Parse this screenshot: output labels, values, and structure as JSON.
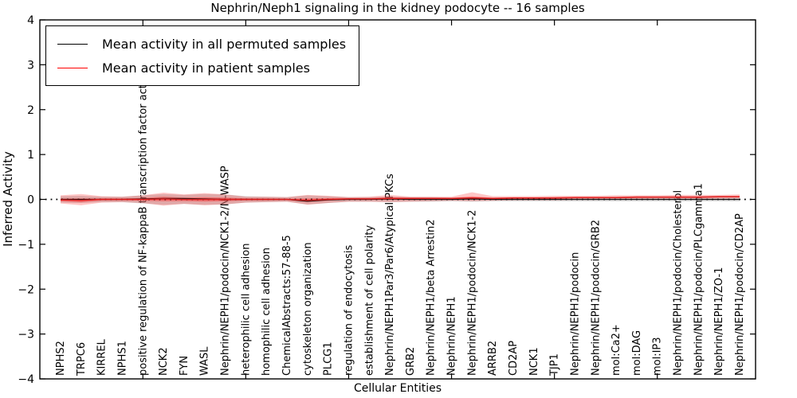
{
  "chart_data": {
    "type": "line",
    "title": "Nephrin/Neph1 signaling in the kidney podocyte -- 16 samples",
    "xlabel": "Cellular Entities",
    "ylabel": "Inferred Activity",
    "ylim": [
      -4,
      4
    ],
    "yticks": {
      "values": [
        4,
        3,
        2,
        1,
        0,
        -1,
        -2,
        -3,
        -4
      ],
      "labels": [
        "4",
        "3",
        "2",
        "1",
        "0",
        "−1",
        "−2",
        "−3",
        "−4"
      ]
    },
    "x_major_tick_indices": [
      4,
      9,
      14,
      19,
      24,
      29
    ],
    "grid": false,
    "legend_position": "upper-left",
    "legend": [
      {
        "label": "Mean activity in all permuted samples",
        "color": "#000000"
      },
      {
        "label": "Mean activity in patient samples",
        "color": "#ff0000"
      }
    ],
    "zero_line_value": 0,
    "categories": [
      "NPHS2",
      "TRPC6",
      "KIRREL",
      "NPHS1",
      "positive regulation of NF-kappaB transcription factor activity",
      "NCK2",
      "FYN",
      "WASL",
      "Nephrin/NEPH1/podocin/NCK1-2/N-WASP",
      "heterophilic cell adhesion",
      "homophilic cell adhesion",
      "ChemicalAbstracts:57-88-5",
      "cytoskeleton organization",
      "PLCG1",
      "regulation of endocytosis",
      "establishment of cell polarity",
      "Nephrin/NEPH1Par3/Par6/Atypical PKCs",
      "GRB2",
      "Nephrin/NEPH1/beta Arrestin2",
      "Nephrin/NEPH1",
      "Nephrin/NEPH1/podocin/NCK1-2",
      "ARRB2",
      "CD2AP",
      "NCK1",
      "TJP1",
      "Nephrin/NEPH1/podocin",
      "Nephrin/NEPH1/podocin/GRB2",
      "mol:Ca2+",
      "mol:DAG",
      "mol:IP3",
      "Nephrin/NEPH1/podocin/Cholesterol",
      "Nephrin/NEPH1/podocin/PLCgamma1",
      "Nephrin/NEPH1/ZO-1",
      "Nephrin/NEPH1/podocin/CD2AP"
    ],
    "series": [
      {
        "name": "Mean activity in all permuted samples",
        "color": "#111111",
        "values": [
          0,
          0,
          0,
          0,
          0.01,
          0.02,
          0.02,
          0.01,
          0,
          0,
          0,
          0,
          -0.04,
          -0.01,
          0,
          0,
          0.01,
          0,
          0,
          0,
          0.01,
          0,
          0,
          0,
          0,
          0,
          0,
          0,
          0,
          0,
          0,
          0,
          0,
          0
        ]
      },
      {
        "name": "Mean activity in patient samples",
        "color": "#dd2020",
        "values": [
          -0.01,
          -0.02,
          0,
          0,
          0,
          0.01,
          0,
          0,
          0,
          0,
          0,
          0,
          -0.02,
          0,
          0.01,
          0.01,
          0.02,
          0.02,
          0.02,
          0.02,
          0.03,
          0.02,
          0.03,
          0.03,
          0.03,
          0.04,
          0.04,
          0.04,
          0.05,
          0.05,
          0.05,
          0.05,
          0.06,
          0.06
        ]
      }
    ],
    "bands": [
      {
        "name": "permuted-range",
        "color": "#999999",
        "opacity": 0.4,
        "upper": [
          0.07,
          0.08,
          0.06,
          0.06,
          0.09,
          0.12,
          0.1,
          0.12,
          0.11,
          0.07,
          0.06,
          0.05,
          0.09,
          0.07,
          0.05,
          0.05,
          0.06,
          0.05,
          0.05,
          0.04,
          0.05,
          0.04,
          0.04,
          0.04,
          0.04,
          0.04,
          0.04,
          0.04,
          0.04,
          0.04,
          0.04,
          0.04,
          0.04,
          0.04
        ],
        "lower": [
          -0.07,
          -0.08,
          -0.06,
          -0.06,
          -0.09,
          -0.12,
          -0.1,
          -0.12,
          -0.11,
          -0.07,
          -0.06,
          -0.05,
          -0.11,
          -0.08,
          -0.05,
          -0.05,
          -0.06,
          -0.05,
          -0.05,
          -0.04,
          -0.05,
          -0.04,
          -0.04,
          -0.04,
          -0.04,
          -0.04,
          -0.04,
          -0.04,
          -0.04,
          -0.04,
          -0.04,
          -0.04,
          -0.04,
          -0.04
        ]
      },
      {
        "name": "patient-range",
        "color": "#ff3333",
        "opacity": 0.28,
        "upper": [
          0.09,
          0.12,
          0.07,
          0.06,
          0.09,
          0.15,
          0.11,
          0.14,
          0.11,
          0.06,
          0.06,
          0.05,
          0.1,
          0.08,
          0.05,
          0.06,
          0.1,
          0.06,
          0.06,
          0.06,
          0.16,
          0.07,
          0.07,
          0.07,
          0.08,
          0.08,
          0.08,
          0.09,
          0.09,
          0.09,
          0.1,
          0.1,
          0.1,
          0.11
        ],
        "lower": [
          -0.09,
          -0.13,
          -0.07,
          -0.06,
          -0.08,
          -0.14,
          -0.1,
          -0.13,
          -0.11,
          -0.07,
          -0.06,
          -0.05,
          -0.12,
          -0.08,
          -0.05,
          -0.05,
          -0.06,
          -0.05,
          -0.04,
          -0.03,
          -0.04,
          -0.03,
          -0.02,
          -0.02,
          -0.02,
          -0.01,
          -0.01,
          0,
          0,
          0.01,
          0.01,
          0.01,
          0.01,
          0.02
        ]
      }
    ],
    "colors": {
      "axis": "#000000",
      "zero_line": "#000000",
      "permuted_line": "#111111",
      "patient_line": "#dd2020",
      "permuted_band": "#999999",
      "patient_band": "#ff3333"
    }
  }
}
